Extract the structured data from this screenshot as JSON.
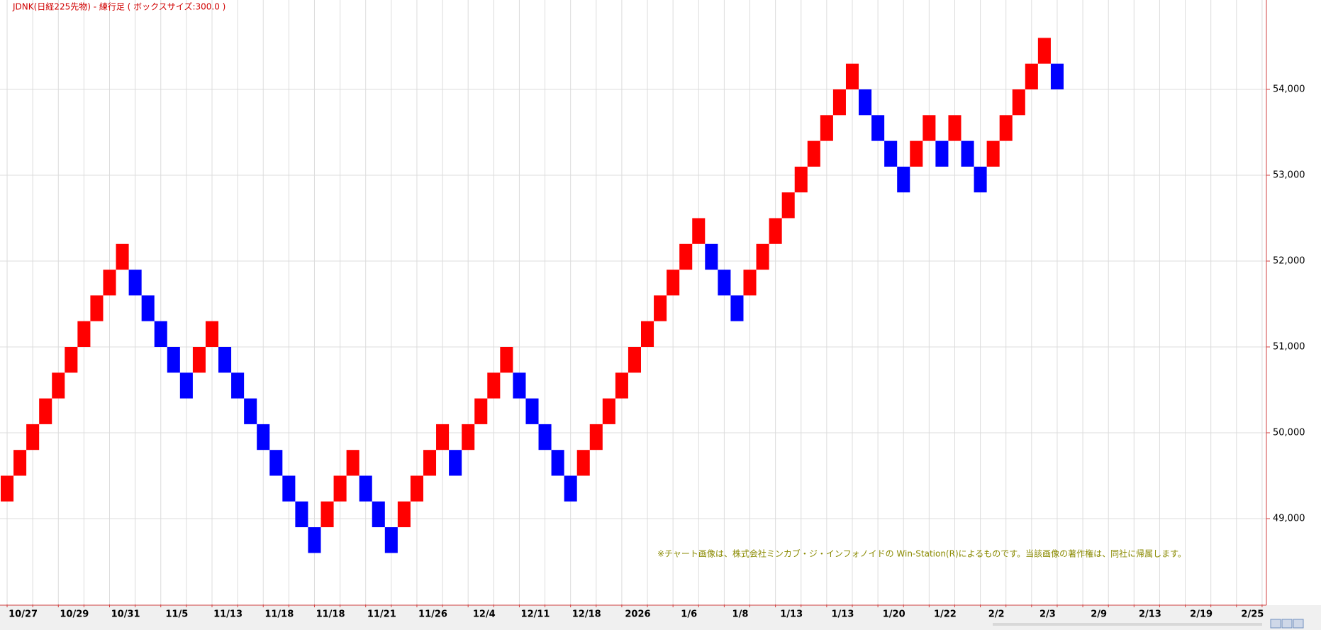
{
  "chart_data": {
    "type": "renko",
    "title": "JDNK(日経225先物) - 練行足 ( ボックスサイズ:300.0 )",
    "annotation": "※チャート画像は、株式会社ミンカブ・ジ・インフォノイドの Win-Station(R)によるものです。当該画像の著作権は、同社に帰属します。",
    "up_color": "#ff0000",
    "down_color": "#0000ff",
    "open": [
      49200,
      49500,
      49800,
      50100,
      50400,
      50700,
      51000,
      51300,
      51600,
      51900,
      51900,
      51600,
      51300,
      51000,
      50700,
      50700,
      51000,
      51000,
      50700,
      50400,
      50100,
      49800,
      49500,
      49200,
      48900,
      48900,
      49200,
      49500,
      49500,
      49200,
      48900,
      48900,
      49200,
      49500,
      49800,
      49800,
      49800,
      50100,
      50400,
      50700,
      50700,
      50400,
      50100,
      49800,
      49500,
      49500,
      49800,
      50100,
      50400,
      50700,
      51000,
      51300,
      51600,
      51900,
      52200,
      52200,
      51900,
      51600,
      51600,
      51900,
      52200,
      52500,
      52800,
      53100,
      53400,
      53700,
      54000,
      54000,
      53700,
      53400,
      53100,
      53100,
      53400,
      53400,
      53400,
      53400,
      53100,
      53100,
      53400,
      53700,
      54000,
      54300,
      54300
    ],
    "close": [
      49500,
      49800,
      50100,
      50400,
      50700,
      51000,
      51300,
      51600,
      51900,
      52200,
      51600,
      51300,
      51000,
      50700,
      50400,
      51000,
      51300,
      50700,
      50400,
      50100,
      49800,
      49500,
      49200,
      48900,
      48600,
      49200,
      49500,
      49800,
      49200,
      48900,
      48600,
      49200,
      49500,
      49800,
      50100,
      49500,
      50100,
      50400,
      50700,
      51000,
      50400,
      50100,
      49800,
      49500,
      49200,
      49800,
      50100,
      50400,
      50700,
      51000,
      51300,
      51600,
      51900,
      52200,
      52500,
      51900,
      51600,
      51300,
      51900,
      52200,
      52500,
      52800,
      53100,
      53400,
      53700,
      54000,
      54300,
      53700,
      53400,
      53100,
      52800,
      53400,
      53700,
      53100,
      53700,
      53100,
      52800,
      53400,
      53700,
      54000,
      54300,
      54600,
      54000
    ],
    "xtick_labels": [
      "10/27",
      "10/29",
      "10/31",
      "11/5",
      "11/13",
      "11/18",
      "11/18",
      "11/21",
      "11/26",
      "12/4",
      "12/11",
      "12/18",
      "2026",
      "1/6",
      "1/8",
      "1/13",
      "1/13",
      "1/20",
      "1/22",
      "2/2",
      "2/3",
      "2/9",
      "2/13",
      "2/19",
      "2/25"
    ],
    "ylim": [
      48000,
      55000
    ],
    "yticks": [
      {
        "value": 49000,
        "label": "49,000"
      },
      {
        "value": 50000,
        "label": "50,000"
      },
      {
        "value": 51000,
        "label": "51,000"
      },
      {
        "value": 52000,
        "label": "52,000"
      },
      {
        "value": 53000,
        "label": "53,000"
      },
      {
        "value": 54000,
        "label": "54,000"
      }
    ],
    "grid": true
  }
}
